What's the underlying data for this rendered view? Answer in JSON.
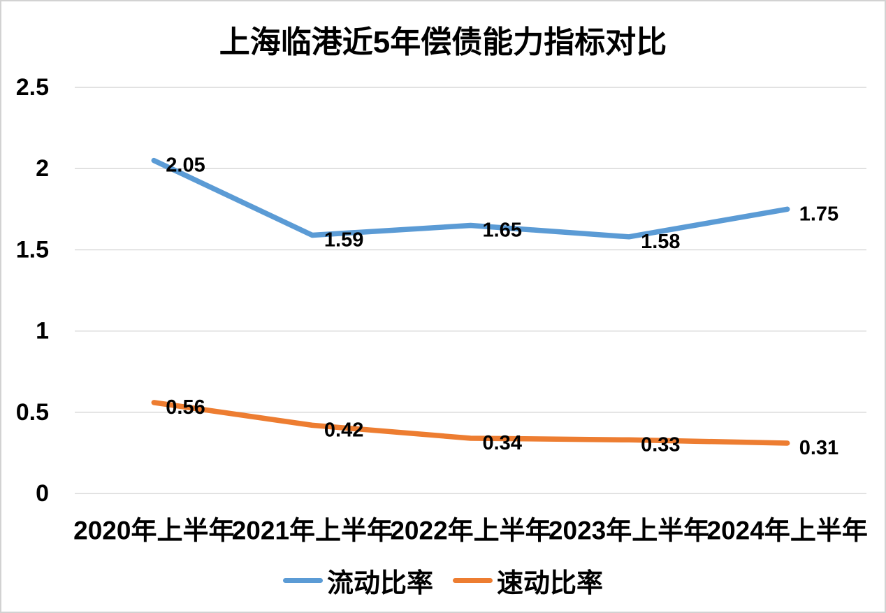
{
  "colors": {
    "series_blue": "#5B9BD5",
    "series_orange": "#ED7D31",
    "gridline": "#D9D9D9",
    "text": "#000000",
    "border": "#D2D2D2",
    "background": "#FFFFFF"
  },
  "chart_data": {
    "type": "line",
    "title": "上海临港近5年偿债能力指标对比",
    "categories": [
      "2020年上半年",
      "2021年上半年",
      "2022年上半年",
      "2023年上半年",
      "2024年上半年"
    ],
    "series": [
      {
        "id": "current-ratio",
        "name": "流动比率",
        "color": "#5B9BD5",
        "values": [
          2.05,
          1.59,
          1.65,
          1.58,
          1.75
        ],
        "labels": [
          "2.05",
          "1.59",
          "1.65",
          "1.58",
          "1.75"
        ]
      },
      {
        "id": "quick-ratio",
        "name": "速动比率",
        "color": "#ED7D31",
        "values": [
          0.56,
          0.42,
          0.34,
          0.33,
          0.31
        ],
        "labels": [
          "0.56",
          "0.42",
          "0.34",
          "0.33",
          "0.31"
        ]
      }
    ],
    "y_axis": {
      "min": 0,
      "max": 2.5,
      "step": 0.5,
      "tick_values": [
        0,
        0.5,
        1,
        1.5,
        2,
        2.5
      ],
      "ticks": [
        "0",
        "0.5",
        "1",
        "1.5",
        "2",
        "2.5"
      ]
    },
    "xlabel": "",
    "ylabel": "",
    "grid": true,
    "legend_position": "bottom",
    "data_labels": true
  }
}
